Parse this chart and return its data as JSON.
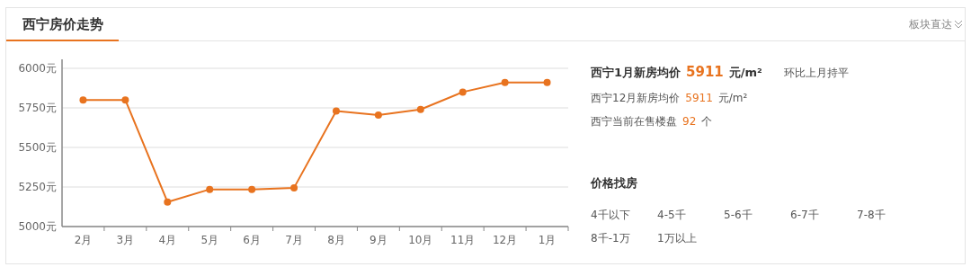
{
  "chart_data": [
    {
      "type": "line",
      "title": "西宁房价走势",
      "annotations": [
        "板块直达"
      ],
      "categories": [
        "2月",
        "3月",
        "4月",
        "5月",
        "6月",
        "7月",
        "8月",
        "9月",
        "10月",
        "11月",
        "12月",
        "1月"
      ],
      "series": [
        {
          "color": "#e8731f",
          "values": [
            5800,
            5800,
            5155,
            5235,
            5235,
            5245,
            5730,
            5705,
            5740,
            5850,
            5911,
            5911
          ]
        }
      ],
      "ylim": [
        5000,
        6000
      ],
      "yticks": [
        {
          "value": 5000,
          "label": "5000元"
        },
        {
          "value": 5250,
          "label": "5250元"
        },
        {
          "value": 5500,
          "label": "5500元"
        },
        {
          "value": 5750,
          "label": "5750元"
        },
        {
          "value": 6000,
          "label": "6000元"
        }
      ],
      "grid": "y",
      "marker": "circle",
      "line_style": "solid"
    },
    {
      "type": "other",
      "annotations": [
        "西宁1月新房均价",
        "5911",
        "元/m²",
        "环比上月持平",
        "西宁12月新房均价",
        "5911",
        "元/m²",
        "西宁当前在售楼盘",
        "92",
        "个",
        "价格找房",
        "4千以下",
        "4-5千",
        "5-6千",
        "6-7千",
        "7-8千",
        "8千-1万",
        "1万以上"
      ]
    }
  ]
}
